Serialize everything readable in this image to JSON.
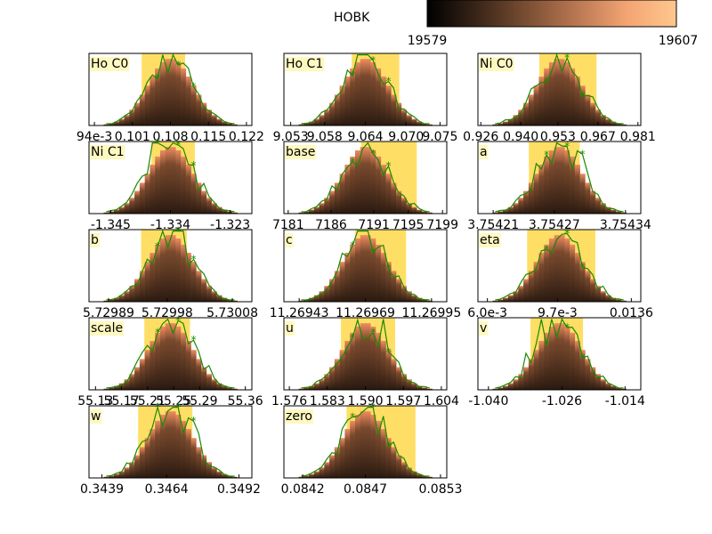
{
  "colorbar": {
    "label": "HOBK",
    "min_label": "19579",
    "max_label": "19607",
    "colors": [
      "#000000",
      "#3a2518",
      "#7a4e33",
      "#b97752",
      "#f3a472",
      "#ffc78e"
    ]
  },
  "style": {
    "bar_top_color": "#f08c60",
    "bar_bottom_color": "#2a1a10",
    "highlight_color": "#ffd84a",
    "label_bg": "#fff8c0",
    "line_color": "#1a8a00"
  },
  "chart_data": [
    {
      "type": "bar",
      "title": "Ho C0",
      "ticks": [
        "94e-3",
        "0.101",
        "0.108",
        "0.115",
        "0.122"
      ],
      "x": [
        0.094,
        0.101,
        0.108,
        0.115,
        0.122
      ],
      "xlim": [
        0.093,
        0.123
      ],
      "highlight": [
        0.1027,
        0.1107
      ]
    },
    {
      "type": "bar",
      "title": "Ho C1",
      "ticks": [
        "9.053",
        "9.058",
        "9.064",
        "9.070",
        "9.075"
      ],
      "x": [
        9.053,
        9.058,
        9.064,
        9.07,
        9.075
      ],
      "xlim": [
        9.052,
        9.076
      ],
      "highlight": [
        9.062,
        9.069
      ]
    },
    {
      "type": "bar",
      "title": "Ni C0",
      "ticks": [
        "0.926",
        "0.940",
        "0.953",
        "0.967",
        "0.981"
      ],
      "x": [
        0.926,
        0.94,
        0.953,
        0.967,
        0.981
      ],
      "xlim": [
        0.925,
        0.982
      ],
      "highlight": [
        0.9465,
        0.9665
      ]
    },
    {
      "type": "bar",
      "title": "Ni C1",
      "ticks": [
        "-1.345",
        "-1.334",
        "-1.323"
      ],
      "x": [
        -1.345,
        -1.334,
        -1.323
      ],
      "xlim": [
        -1.349,
        -1.319
      ],
      "highlight": [
        -1.3375,
        -1.3295
      ]
    },
    {
      "type": "bar",
      "title": "base",
      "ticks": [
        "7181",
        "7186",
        "7191",
        "7195",
        "7199"
      ],
      "x": [
        7181,
        7186,
        7191,
        7195,
        7199
      ],
      "xlim": [
        7180.5,
        7199.5
      ],
      "highlight": [
        7189.5,
        7196
      ]
    },
    {
      "type": "bar",
      "title": "a",
      "ticks": [
        "3.75421",
        "3.75427",
        "3.75434"
      ],
      "x": [
        3.75421,
        3.75427,
        3.75434
      ],
      "xlim": [
        3.754195,
        3.754355
      ],
      "highlight": [
        3.754245,
        3.754295
      ]
    },
    {
      "type": "bar",
      "title": "b",
      "ticks": [
        "5.72989",
        "5.72998",
        "5.73008"
      ],
      "x": [
        5.72989,
        5.72998,
        5.73008
      ],
      "xlim": [
        5.72986,
        5.73011
      ],
      "highlight": [
        5.72994,
        5.73001
      ]
    },
    {
      "type": "bar",
      "title": "c",
      "ticks": [
        "11.26943",
        "11.26969",
        "11.26995"
      ],
      "x": [
        11.26943,
        11.26969,
        11.26995
      ],
      "xlim": [
        11.26937,
        11.27001
      ],
      "highlight": [
        11.26965,
        11.26985
      ]
    },
    {
      "type": "bar",
      "title": "eta",
      "ticks": [
        "6.0e-3",
        "9.7e-3",
        "0.0136"
      ],
      "x": [
        0.006,
        0.0097,
        0.0136
      ],
      "xlim": [
        0.0055,
        0.0141
      ],
      "highlight": [
        0.0081,
        0.0117
      ]
    },
    {
      "type": "bar",
      "title": "scale",
      "ticks": [
        "55.13",
        "55.17",
        "55.21",
        "55.25",
        "55.29",
        "55.36"
      ],
      "x": [
        55.13,
        55.17,
        55.21,
        55.25,
        55.29,
        55.36
      ],
      "xlim": [
        55.12,
        55.37
      ],
      "highlight": [
        55.205,
        55.275
      ]
    },
    {
      "type": "bar",
      "title": "u",
      "ticks": [
        "1.576",
        "1.583",
        "1.590",
        "1.597",
        "1.604"
      ],
      "x": [
        1.576,
        1.583,
        1.59,
        1.597,
        1.604
      ],
      "xlim": [
        1.575,
        1.605
      ],
      "highlight": [
        1.5855,
        1.5955
      ]
    },
    {
      "type": "bar",
      "title": "v",
      "ticks": [
        "-1.040",
        "-1.026",
        "-1.014"
      ],
      "x": [
        -1.04,
        -1.026,
        -1.014
      ],
      "xlim": [
        -1.042,
        -1.011
      ],
      "highlight": [
        -1.032,
        -1.022
      ]
    },
    {
      "type": "bar",
      "title": "w",
      "ticks": [
        "0.3439",
        "0.3464",
        "0.3492"
      ],
      "x": [
        0.3439,
        0.3464,
        0.3492
      ],
      "xlim": [
        0.3434,
        0.3497
      ],
      "highlight": [
        0.3453,
        0.3474
      ]
    },
    {
      "type": "bar",
      "title": "zero",
      "ticks": [
        "0.0842",
        "0.0847",
        "0.0853"
      ],
      "x": [
        0.0842,
        0.0847,
        0.0853
      ],
      "xlim": [
        0.08405,
        0.08535
      ],
      "highlight": [
        0.08455,
        0.0851
      ]
    }
  ]
}
